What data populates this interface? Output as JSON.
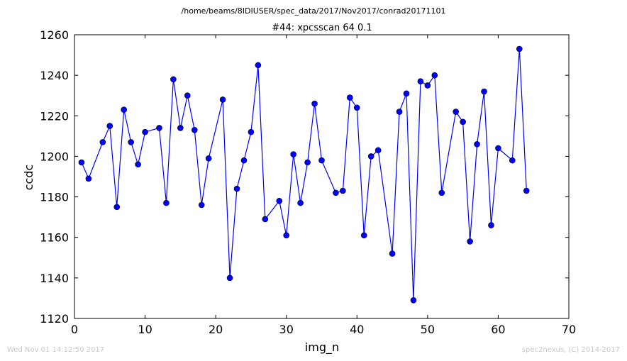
{
  "chart_data": {
    "type": "line",
    "suptitle": "/home/beams/8IDIUSER/spec_data/2017/Nov2017/conrad20171101",
    "title": "#44: xpcsscan 64 0.1",
    "xlabel": "img_n",
    "ylabel": "ccdc",
    "xlim": [
      0,
      70
    ],
    "ylim": [
      1120,
      1260
    ],
    "x_ticks": [
      0,
      10,
      20,
      30,
      40,
      50,
      60,
      70
    ],
    "y_ticks": [
      1120,
      1140,
      1160,
      1180,
      1200,
      1220,
      1240,
      1260
    ],
    "grid": false,
    "marker": "circle",
    "color": "#0000ff",
    "x": [
      1,
      2,
      4,
      5,
      6,
      7,
      8,
      9,
      10,
      12,
      13,
      14,
      15,
      16,
      17,
      18,
      19,
      21,
      22,
      23,
      24,
      25,
      26,
      27,
      29,
      30,
      31,
      32,
      33,
      34,
      35,
      37,
      38,
      39,
      40,
      41,
      42,
      43,
      45,
      46,
      47,
      48,
      49,
      50,
      51,
      52,
      54,
      55,
      56,
      57,
      58,
      59,
      60,
      62,
      63,
      64
    ],
    "y": [
      1197,
      1189,
      1207,
      1215,
      1175,
      1223,
      1207,
      1196,
      1212,
      1214,
      1177,
      1238,
      1214,
      1230,
      1213,
      1176,
      1199,
      1228,
      1140,
      1184,
      1198,
      1212,
      1245,
      1169,
      1178,
      1161,
      1201,
      1177,
      1197,
      1226,
      1198,
      1182,
      1183,
      1229,
      1224,
      1161,
      1200,
      1203,
      1152,
      1222,
      1231,
      1129,
      1237,
      1235,
      1240,
      1182,
      1222,
      1217,
      1158,
      1206,
      1232,
      1166,
      1204,
      1198,
      1253,
      1183
    ]
  },
  "footer": {
    "timestamp": "Wed Nov 01 14:12:50 2017",
    "credit": "spec2nexus, (C) 2014-2017"
  }
}
